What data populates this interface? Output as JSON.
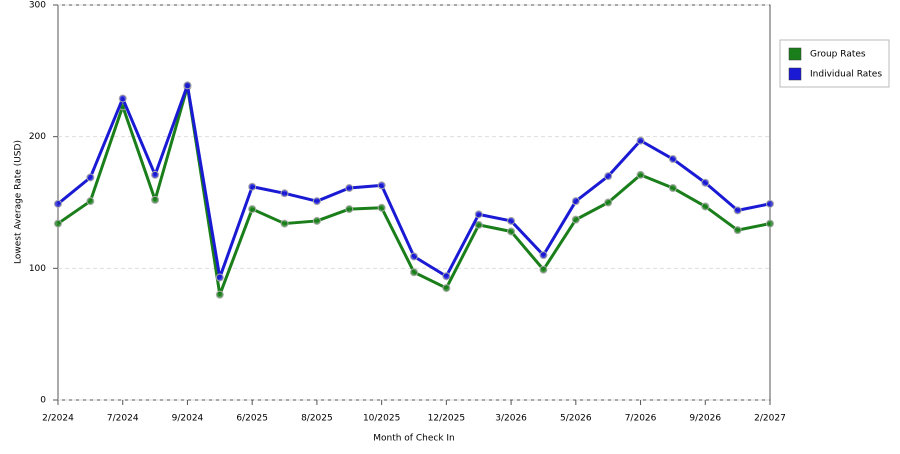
{
  "chart_data": {
    "type": "line",
    "x_label": "Month of Check In",
    "y_label": "Lowest Average Rate (USD)",
    "categories": [
      "2/2024",
      null,
      "7/2024",
      null,
      "9/2024",
      null,
      "6/2025",
      null,
      "8/2025",
      null,
      "10/2025",
      null,
      "12/2025",
      null,
      "3/2026",
      null,
      "5/2026",
      null,
      "7/2026",
      null,
      "9/2026",
      null,
      "2/2027"
    ],
    "series": [
      {
        "name": "Group Rates",
        "color": "#1a7f1a",
        "values": [
          134,
          151,
          223,
          152,
          238,
          80,
          145,
          134,
          136,
          145,
          146,
          97,
          85,
          133,
          128,
          99,
          137,
          150,
          171,
          161,
          147,
          129,
          134
        ]
      },
      {
        "name": "Individual Rates",
        "color": "#1a1ad4",
        "values": [
          149,
          169,
          229,
          171,
          239,
          93,
          162,
          157,
          151,
          161,
          163,
          109,
          94,
          141,
          136,
          110,
          151,
          170,
          197,
          183,
          165,
          144,
          149
        ]
      }
    ],
    "ylim": [
      0,
      300
    ],
    "yticks": [
      0,
      100,
      200,
      300
    ],
    "grid": true,
    "legend": "right"
  }
}
